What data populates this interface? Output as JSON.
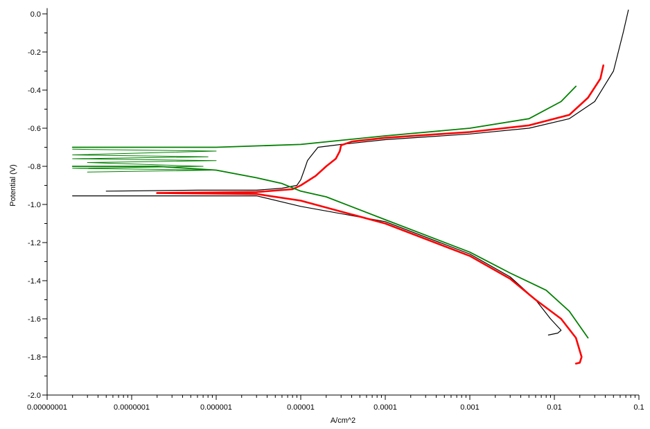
{
  "chart_data": {
    "type": "line",
    "title": "",
    "xlabel": "A/cm^2",
    "ylabel": "Potential (V)",
    "xscale": "log",
    "xlim": [
      1e-08,
      0.1
    ],
    "ylim": [
      -2.0,
      0.0
    ],
    "x_tick_labels": [
      "0.00000001",
      "0.0000001",
      "0.000001",
      "0.00001",
      "0.0001",
      "0.001",
      "0.01",
      "0.1"
    ],
    "y_tick_labels": [
      "0.0",
      "-0.2",
      "-0.4",
      "-0.6",
      "-0.8",
      "-1.0",
      "-1.2",
      "-1.4",
      "-1.6",
      "-1.8",
      "-2.0"
    ],
    "grid": false,
    "legend": "none",
    "series": [
      {
        "color": "#000000",
        "anodic": [
          [
            5e-08,
            -0.93
          ],
          [
            6e-07,
            -0.925
          ],
          [
            3e-06,
            -0.925
          ],
          [
            6e-06,
            -0.915
          ],
          [
            9e-06,
            -0.9
          ],
          [
            1e-05,
            -0.87
          ],
          [
            1.1e-05,
            -0.82
          ],
          [
            1.2e-05,
            -0.77
          ],
          [
            1.3e-05,
            -0.75
          ],
          [
            1.6e-05,
            -0.7
          ],
          [
            3e-05,
            -0.685
          ],
          [
            0.0001,
            -0.66
          ],
          [
            0.001,
            -0.63
          ],
          [
            0.005,
            -0.6
          ],
          [
            0.015,
            -0.55
          ],
          [
            0.03,
            -0.46
          ],
          [
            0.05,
            -0.3
          ],
          [
            0.065,
            -0.1
          ],
          [
            0.075,
            0.02
          ]
        ],
        "cathodic": [
          [
            2e-08,
            -0.955
          ],
          [
            3e-06,
            -0.955
          ],
          [
            1e-05,
            -1.01
          ],
          [
            0.0001,
            -1.09
          ],
          [
            0.001,
            -1.26
          ],
          [
            0.003,
            -1.38
          ],
          [
            0.006,
            -1.5
          ],
          [
            0.009,
            -1.6
          ],
          [
            0.012,
            -1.66
          ],
          [
            0.011,
            -1.675
          ],
          [
            0.0085,
            -1.685
          ]
        ]
      },
      {
        "color": "#ff0000",
        "anodic": [
          [
            2e-07,
            -0.94
          ],
          [
            3e-06,
            -0.935
          ],
          [
            8e-06,
            -0.92
          ],
          [
            1e-05,
            -0.9
          ],
          [
            1.5e-05,
            -0.85
          ],
          [
            2e-05,
            -0.8
          ],
          [
            2.6e-05,
            -0.76
          ],
          [
            2.9e-05,
            -0.72
          ],
          [
            3e-05,
            -0.69
          ],
          [
            4e-05,
            -0.67
          ],
          [
            0.0001,
            -0.65
          ],
          [
            0.001,
            -0.62
          ],
          [
            0.005,
            -0.585
          ],
          [
            0.015,
            -0.53
          ],
          [
            0.025,
            -0.44
          ],
          [
            0.035,
            -0.34
          ],
          [
            0.038,
            -0.27
          ]
        ],
        "cathodic": [
          [
            2e-07,
            -0.94
          ],
          [
            3e-06,
            -0.945
          ],
          [
            1e-05,
            -0.98
          ],
          [
            0.0001,
            -1.1
          ],
          [
            0.001,
            -1.27
          ],
          [
            0.003,
            -1.39
          ],
          [
            0.006,
            -1.5
          ],
          [
            0.012,
            -1.6
          ],
          [
            0.018,
            -1.7
          ],
          [
            0.021,
            -1.8
          ],
          [
            0.02,
            -1.83
          ],
          [
            0.018,
            -1.835
          ]
        ]
      },
      {
        "color": "#008000",
        "anodic": [
          [
            2e-08,
            -0.7
          ],
          [
            1e-06,
            -0.7
          ],
          [
            1e-05,
            -0.685
          ],
          [
            0.0001,
            -0.64
          ],
          [
            0.001,
            -0.6
          ],
          [
            0.005,
            -0.55
          ],
          [
            0.012,
            -0.46
          ],
          [
            0.018,
            -0.38
          ]
        ],
        "cathodic": [
          [
            2e-08,
            -0.8
          ],
          [
            2e-07,
            -0.8
          ],
          [
            1e-06,
            -0.82
          ],
          [
            3e-06,
            -0.86
          ],
          [
            6e-06,
            -0.89
          ],
          [
            1e-05,
            -0.93
          ],
          [
            2e-05,
            -0.96
          ],
          [
            0.0001,
            -1.08
          ],
          [
            0.001,
            -1.25
          ],
          [
            0.003,
            -1.36
          ],
          [
            0.008,
            -1.45
          ],
          [
            0.015,
            -1.56
          ],
          [
            0.025,
            -1.7
          ]
        ],
        "noise": [
          [
            2e-08,
            -0.71
          ],
          [
            1e-06,
            -0.72
          ],
          [
            2e-08,
            -0.74
          ],
          [
            8e-07,
            -0.75
          ],
          [
            2e-08,
            -0.76
          ],
          [
            1e-06,
            -0.77
          ],
          [
            3e-08,
            -0.78
          ],
          [
            7e-07,
            -0.8
          ],
          [
            2e-08,
            -0.81
          ],
          [
            9e-07,
            -0.82
          ],
          [
            3e-08,
            -0.83
          ]
        ]
      }
    ]
  }
}
